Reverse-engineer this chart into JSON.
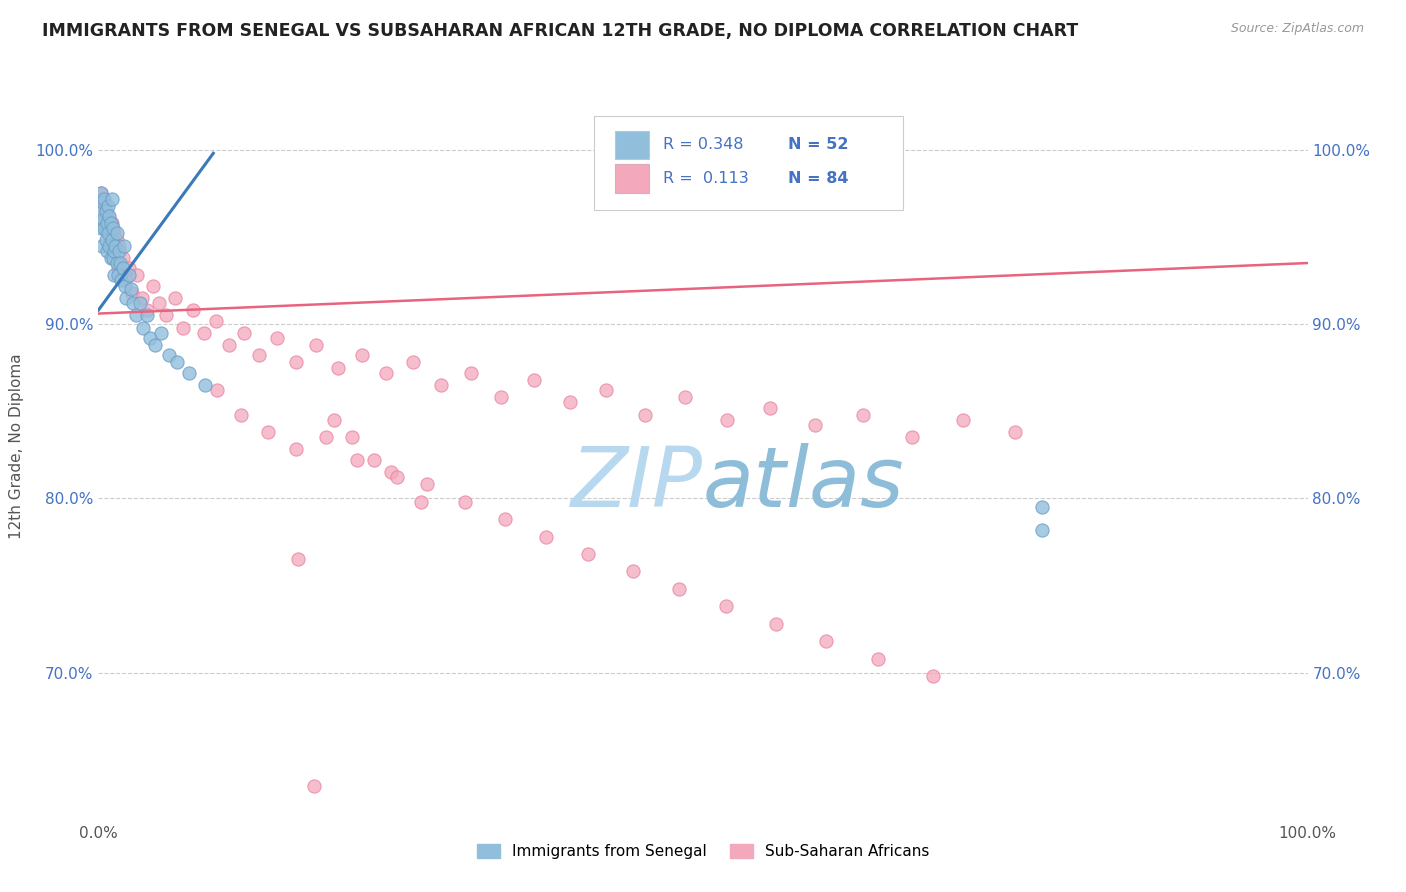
{
  "title": "IMMIGRANTS FROM SENEGAL VS SUBSAHARAN AFRICAN 12TH GRADE, NO DIPLOMA CORRELATION CHART",
  "source": "Source: ZipAtlas.com",
  "ylabel": "12th Grade, No Diploma",
  "xmin": 0.0,
  "xmax": 1.0,
  "ymin": 0.615,
  "ymax": 1.045,
  "ytick_values": [
    0.7,
    0.8,
    0.9,
    1.0
  ],
  "ytick_labels": [
    "70.0%",
    "80.0%",
    "90.0%",
    "100.0%"
  ],
  "xtick_values": [
    0.0,
    1.0
  ],
  "xtick_labels": [
    "0.0%",
    "100.0%"
  ],
  "color_blue": "#91bfdb",
  "color_blue_edge": "#6a9dc8",
  "color_pink": "#f4a8bb",
  "color_pink_edge": "#e87fa0",
  "color_blue_line": "#3a7aba",
  "color_pink_line": "#e8637e",
  "watermark_color": "#cce5f5",
  "blue_scatter_x": [
    0.001,
    0.002,
    0.002,
    0.003,
    0.003,
    0.004,
    0.004,
    0.005,
    0.005,
    0.006,
    0.006,
    0.007,
    0.007,
    0.008,
    0.008,
    0.009,
    0.009,
    0.01,
    0.01,
    0.011,
    0.011,
    0.012,
    0.012,
    0.013,
    0.013,
    0.014,
    0.015,
    0.015,
    0.016,
    0.017,
    0.018,
    0.019,
    0.02,
    0.021,
    0.022,
    0.023,
    0.025,
    0.027,
    0.029,
    0.031,
    0.034,
    0.037,
    0.04,
    0.043,
    0.047,
    0.052,
    0.058,
    0.065,
    0.075,
    0.088,
    0.78,
    0.78
  ],
  "blue_scatter_y": [
    0.965,
    0.955,
    0.975,
    0.958,
    0.945,
    0.97,
    0.96,
    0.955,
    0.972,
    0.948,
    0.965,
    0.958,
    0.942,
    0.968,
    0.952,
    0.945,
    0.962,
    0.938,
    0.958,
    0.972,
    0.948,
    0.955,
    0.938,
    0.942,
    0.928,
    0.945,
    0.935,
    0.952,
    0.928,
    0.942,
    0.935,
    0.925,
    0.932,
    0.945,
    0.922,
    0.915,
    0.928,
    0.92,
    0.912,
    0.905,
    0.912,
    0.898,
    0.905,
    0.892,
    0.888,
    0.895,
    0.882,
    0.878,
    0.872,
    0.865,
    0.795,
    0.782
  ],
  "pink_scatter_x": [
    0.002,
    0.003,
    0.004,
    0.005,
    0.006,
    0.007,
    0.008,
    0.009,
    0.01,
    0.011,
    0.012,
    0.013,
    0.014,
    0.015,
    0.016,
    0.017,
    0.018,
    0.02,
    0.022,
    0.025,
    0.028,
    0.032,
    0.036,
    0.04,
    0.045,
    0.05,
    0.056,
    0.063,
    0.07,
    0.078,
    0.087,
    0.097,
    0.108,
    0.12,
    0.133,
    0.148,
    0.163,
    0.18,
    0.198,
    0.218,
    0.238,
    0.26,
    0.283,
    0.308,
    0.333,
    0.36,
    0.39,
    0.42,
    0.452,
    0.485,
    0.52,
    0.555,
    0.593,
    0.632,
    0.673,
    0.715,
    0.758,
    0.098,
    0.118,
    0.14,
    0.163,
    0.188,
    0.214,
    0.242,
    0.272,
    0.303,
    0.336,
    0.37,
    0.405,
    0.442,
    0.48,
    0.519,
    0.56,
    0.602,
    0.645,
    0.69,
    0.195,
    0.21,
    0.228,
    0.247,
    0.267,
    0.165,
    0.178
  ],
  "pink_scatter_y": [
    0.975,
    0.968,
    0.972,
    0.958,
    0.965,
    0.955,
    0.962,
    0.952,
    0.948,
    0.958,
    0.942,
    0.952,
    0.938,
    0.948,
    0.932,
    0.945,
    0.928,
    0.938,
    0.925,
    0.932,
    0.918,
    0.928,
    0.915,
    0.908,
    0.922,
    0.912,
    0.905,
    0.915,
    0.898,
    0.908,
    0.895,
    0.902,
    0.888,
    0.895,
    0.882,
    0.892,
    0.878,
    0.888,
    0.875,
    0.882,
    0.872,
    0.878,
    0.865,
    0.872,
    0.858,
    0.868,
    0.855,
    0.862,
    0.848,
    0.858,
    0.845,
    0.852,
    0.842,
    0.848,
    0.835,
    0.845,
    0.838,
    0.862,
    0.848,
    0.838,
    0.828,
    0.835,
    0.822,
    0.815,
    0.808,
    0.798,
    0.788,
    0.778,
    0.768,
    0.758,
    0.748,
    0.738,
    0.728,
    0.718,
    0.708,
    0.698,
    0.845,
    0.835,
    0.822,
    0.812,
    0.798,
    0.765,
    0.635
  ],
  "blue_line_x": [
    0.0,
    0.095
  ],
  "blue_line_y": [
    0.908,
    0.998
  ],
  "pink_line_x": [
    0.0,
    1.0
  ],
  "pink_line_y": [
    0.906,
    0.935
  ]
}
